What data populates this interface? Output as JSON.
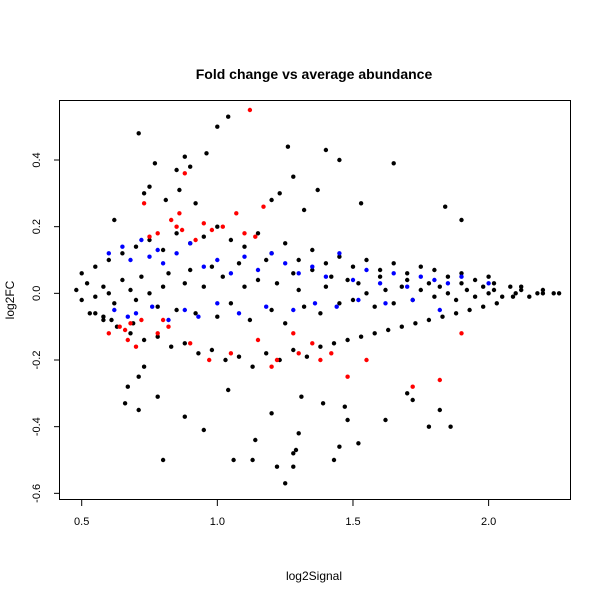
{
  "chart_data": {
    "type": "scatter",
    "title": "Fold change vs average abundance",
    "xlabel": "log2Signal",
    "ylabel": "log2FC",
    "xlim": [
      0.42,
      2.3
    ],
    "ylim": [
      -0.62,
      0.58
    ],
    "x_ticks": [
      0.5,
      1.0,
      1.5,
      2.0
    ],
    "x_tick_labels": [
      "0.5",
      "1.0",
      "1.5",
      "2.0"
    ],
    "y_ticks": [
      -0.6,
      -0.4,
      -0.2,
      0.0,
      0.2,
      0.4
    ],
    "y_tick_labels": [
      "-0.6",
      "-0.4",
      "-0.2",
      "0.0",
      "0.2",
      "0.4"
    ],
    "grid": false,
    "legend": "none",
    "series": [
      {
        "color": "#000000",
        "x": [
          0.48,
          0.5,
          0.52,
          0.55,
          0.58,
          0.6,
          0.62,
          0.65,
          0.68,
          0.7,
          0.72,
          0.75,
          0.78,
          0.8,
          0.82,
          0.85,
          0.88,
          0.9,
          0.92,
          0.95,
          0.98,
          1.0,
          1.02,
          1.05,
          1.08,
          1.1,
          1.12,
          1.15,
          1.18,
          1.2,
          1.22,
          1.25,
          1.28,
          1.3,
          1.32,
          1.35,
          1.38,
          1.4,
          1.42,
          1.45,
          1.48,
          1.5,
          1.52,
          1.55,
          1.58,
          1.6,
          1.62,
          1.65,
          1.68,
          1.7,
          1.72,
          1.75,
          1.78,
          1.8,
          1.82,
          1.85,
          1.88,
          1.9,
          1.92,
          1.95,
          1.98,
          2.0,
          2.02,
          2.05,
          2.08,
          2.1,
          2.12,
          2.15,
          2.18,
          2.2,
          2.24,
          0.5,
          0.55,
          0.6,
          0.65,
          0.7,
          0.75,
          0.8,
          0.85,
          0.9,
          0.95,
          1.0,
          1.05,
          1.1,
          1.15,
          1.2,
          1.25,
          1.3,
          1.35,
          1.4,
          1.45,
          1.5,
          1.55,
          1.6,
          1.65,
          1.7,
          1.75,
          1.8,
          1.85,
          1.9,
          1.95,
          2.0,
          0.53,
          0.58,
          0.63,
          0.68,
          0.73,
          0.78,
          0.83,
          0.88,
          0.93,
          0.98,
          1.03,
          1.08,
          1.13,
          1.18,
          1.23,
          1.28,
          1.33,
          1.38,
          1.43,
          1.48,
          1.53,
          1.58,
          1.63,
          1.68,
          1.73,
          1.78,
          1.83,
          1.88,
          1.93,
          1.98,
          2.03,
          0.71,
          1.0,
          1.04,
          1.26,
          1.4,
          1.45,
          1.65,
          0.77,
          0.85,
          0.88,
          0.9,
          0.96,
          1.28,
          0.73,
          0.62,
          0.75,
          0.81,
          0.86,
          0.92,
          1.2,
          1.23,
          1.32,
          1.37,
          1.53,
          1.84,
          1.9,
          0.88,
          0.95,
          1.06,
          1.22,
          1.29,
          1.43,
          1.48,
          1.86,
          0.8,
          1.25,
          1.28,
          0.66,
          0.71,
          0.78,
          1.14,
          1.13,
          1.28,
          1.52,
          1.7,
          1.82,
          1.3,
          1.45,
          1.72,
          1.62,
          1.78,
          0.67,
          0.71,
          0.73,
          1.47,
          1.04,
          1.31,
          1.2,
          1.39,
          2.02,
          2.09,
          2.12,
          2.2,
          2.26,
          0.55,
          0.58,
          0.61,
          0.69
        ],
        "y": [
          0.01,
          -0.02,
          0.03,
          -0.01,
          0.02,
          0.0,
          -0.03,
          0.04,
          0.01,
          -0.02,
          0.05,
          0.0,
          -0.04,
          0.02,
          0.06,
          -0.05,
          0.03,
          0.07,
          -0.06,
          0.02,
          0.08,
          -0.07,
          0.05,
          -0.03,
          0.09,
          0.02,
          -0.08,
          0.04,
          0.1,
          -0.05,
          0.03,
          -0.09,
          0.06,
          0.01,
          -0.04,
          0.07,
          -0.06,
          0.02,
          0.05,
          -0.03,
          0.04,
          -0.02,
          0.03,
          0.0,
          -0.04,
          0.05,
          0.01,
          -0.03,
          0.02,
          0.04,
          -0.02,
          0.01,
          0.03,
          -0.01,
          0.02,
          0.0,
          -0.02,
          0.03,
          0.01,
          -0.01,
          0.02,
          0.0,
          0.01,
          -0.01,
          0.02,
          0.0,
          0.01,
          -0.01,
          0.0,
          0.01,
          0.0,
          0.06,
          0.08,
          0.1,
          0.12,
          0.14,
          0.16,
          0.13,
          0.18,
          0.15,
          0.17,
          0.2,
          0.16,
          0.14,
          0.18,
          0.12,
          0.15,
          0.1,
          0.13,
          0.09,
          0.11,
          0.08,
          0.1,
          0.07,
          0.09,
          0.06,
          0.08,
          0.07,
          0.05,
          0.06,
          0.04,
          0.05,
          -0.06,
          -0.08,
          -0.1,
          -0.12,
          -0.14,
          -0.13,
          -0.16,
          -0.15,
          -0.18,
          -0.17,
          -0.2,
          -0.19,
          -0.22,
          -0.18,
          -0.2,
          -0.17,
          -0.19,
          -0.16,
          -0.15,
          -0.14,
          -0.13,
          -0.12,
          -0.11,
          -0.1,
          -0.09,
          -0.08,
          -0.07,
          -0.06,
          -0.05,
          -0.04,
          -0.03,
          0.48,
          0.5,
          0.53,
          0.44,
          0.43,
          0.4,
          0.39,
          0.39,
          0.37,
          0.41,
          0.38,
          0.42,
          0.35,
          0.3,
          0.22,
          0.32,
          0.28,
          0.31,
          0.27,
          0.28,
          0.3,
          0.25,
          0.31,
          0.27,
          0.26,
          0.22,
          -0.37,
          -0.41,
          -0.5,
          -0.52,
          -0.47,
          -0.5,
          -0.38,
          -0.4,
          -0.5,
          -0.57,
          -0.52,
          -0.33,
          -0.35,
          -0.31,
          -0.44,
          -0.5,
          -0.48,
          -0.45,
          -0.3,
          -0.35,
          -0.42,
          -0.46,
          -0.32,
          -0.38,
          -0.4,
          -0.28,
          -0.25,
          -0.22,
          -0.34,
          -0.29,
          -0.31,
          -0.36,
          -0.33,
          0.03,
          -0.01,
          0.02,
          0.0,
          0.0,
          -0.06,
          -0.07,
          -0.08,
          -0.09
        ]
      },
      {
        "color": "#ff0000",
        "x": [
          1.12,
          0.88,
          0.73,
          1.17,
          1.07,
          0.83,
          0.85,
          0.78,
          0.95,
          0.98,
          1.02,
          1.1,
          1.14,
          0.92,
          0.87,
          0.75,
          0.68,
          0.6,
          0.64,
          0.67,
          0.7,
          0.66,
          0.72,
          0.78,
          0.82,
          0.9,
          0.97,
          1.05,
          1.2,
          1.28,
          1.35,
          1.42,
          1.48,
          1.55,
          1.72,
          1.82,
          1.9,
          0.8,
          0.86,
          1.15,
          1.22,
          1.3,
          1.38
        ],
        "y": [
          0.55,
          0.36,
          0.27,
          0.26,
          0.24,
          0.22,
          0.2,
          0.18,
          0.21,
          0.19,
          0.2,
          0.18,
          0.17,
          0.16,
          0.19,
          0.17,
          -0.09,
          -0.12,
          -0.1,
          -0.14,
          -0.16,
          -0.11,
          -0.08,
          -0.12,
          -0.1,
          -0.15,
          -0.2,
          -0.18,
          -0.22,
          -0.12,
          -0.15,
          -0.18,
          -0.25,
          -0.2,
          -0.28,
          -0.26,
          -0.12,
          -0.08,
          0.24,
          -0.14,
          -0.2,
          -0.18,
          -0.2
        ]
      },
      {
        "color": "#0000ff",
        "x": [
          0.6,
          0.65,
          0.68,
          0.72,
          0.75,
          0.78,
          0.8,
          0.85,
          0.9,
          0.95,
          1.0,
          1.05,
          1.1,
          1.15,
          1.2,
          1.25,
          1.3,
          1.35,
          1.4,
          1.45,
          1.5,
          1.55,
          1.6,
          1.65,
          1.7,
          1.75,
          1.8,
          1.85,
          1.9,
          2.0,
          0.62,
          0.67,
          0.7,
          0.76,
          0.82,
          0.88,
          0.93,
          1.0,
          1.08,
          1.18,
          1.28,
          1.36,
          1.44,
          1.52,
          1.62,
          1.72,
          1.82
        ],
        "y": [
          0.12,
          0.14,
          0.1,
          0.16,
          0.11,
          0.13,
          0.09,
          0.12,
          0.15,
          0.08,
          0.1,
          0.06,
          0.11,
          0.07,
          0.12,
          0.09,
          0.06,
          0.08,
          0.05,
          0.12,
          0.04,
          0.07,
          0.03,
          0.06,
          0.02,
          0.05,
          0.04,
          0.03,
          0.05,
          0.03,
          -0.05,
          -0.07,
          -0.06,
          -0.04,
          -0.08,
          -0.05,
          -0.07,
          -0.03,
          -0.06,
          -0.04,
          -0.05,
          -0.03,
          -0.04,
          -0.02,
          -0.03,
          -0.02,
          -0.05
        ]
      }
    ]
  }
}
